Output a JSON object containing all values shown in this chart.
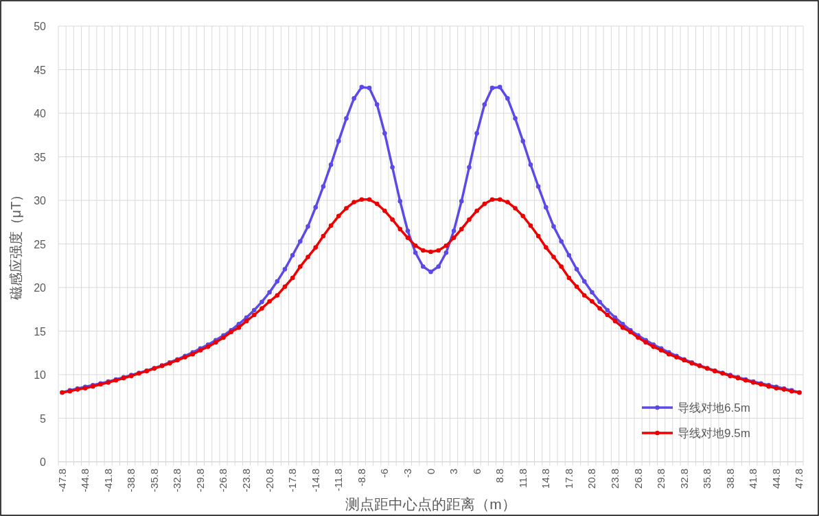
{
  "chart_data": {
    "type": "line",
    "xlabel": "测点距中心点的距离（m）",
    "ylabel": "磁感应强度（μT）",
    "categories": [
      "-47.8",
      null,
      null,
      "-44.8",
      null,
      null,
      "-41.8",
      null,
      null,
      "-38.8",
      null,
      null,
      "-35.8",
      null,
      null,
      "-32.8",
      null,
      null,
      "-29.8",
      null,
      null,
      "-26.8",
      null,
      null,
      "-23.8",
      null,
      null,
      "-20.8",
      null,
      null,
      "-17.8",
      null,
      null,
      "-14.8",
      null,
      null,
      "-11.8",
      null,
      null,
      "-8.8",
      null,
      null,
      "-6",
      null,
      null,
      "-3",
      null,
      null,
      "0",
      null,
      null,
      "3",
      null,
      null,
      "6",
      null,
      null,
      "8.8",
      null,
      null,
      "11.8",
      null,
      null,
      "14.8",
      null,
      null,
      "17.8",
      null,
      null,
      "20.8",
      null,
      null,
      "23.8",
      null,
      null,
      "26.8",
      null,
      null,
      "29.8",
      null,
      null,
      "32.8",
      null,
      null,
      "35.8",
      null,
      null,
      "38.8",
      null,
      null,
      "41.8",
      null,
      null,
      "44.8",
      null,
      null,
      "47.8"
    ],
    "series": [
      {
        "name": "导线对地6.5m",
        "color": "#5b4ae6",
        "values": [
          7.95,
          8.2,
          8.4,
          8.6,
          8.8,
          9.0,
          9.2,
          9.45,
          9.7,
          9.95,
          10.2,
          10.45,
          10.75,
          11.05,
          11.4,
          11.75,
          12.15,
          12.55,
          13.0,
          13.45,
          13.95,
          14.5,
          15.1,
          15.8,
          16.55,
          17.4,
          18.35,
          19.45,
          20.7,
          22.1,
          23.7,
          25.3,
          27.0,
          29.2,
          31.6,
          34.1,
          36.8,
          39.4,
          41.7,
          43.0,
          42.9,
          41.0,
          37.7,
          33.8,
          29.9,
          26.5,
          24.0,
          22.4,
          21.8,
          22.4,
          24.0,
          26.5,
          29.9,
          33.8,
          37.7,
          41.0,
          42.9,
          43.0,
          41.7,
          39.4,
          36.8,
          34.1,
          31.6,
          29.2,
          27.0,
          25.3,
          23.7,
          22.1,
          20.7,
          19.45,
          18.35,
          17.4,
          16.55,
          15.8,
          15.1,
          14.5,
          13.95,
          13.45,
          13.0,
          12.55,
          12.15,
          11.75,
          11.4,
          11.05,
          10.75,
          10.45,
          10.2,
          9.95,
          9.7,
          9.45,
          9.2,
          9.0,
          8.8,
          8.6,
          8.4,
          8.2,
          7.95
        ]
      },
      {
        "name": "导线对地9.5m",
        "color": "#ee0000",
        "values": [
          7.95,
          8.1,
          8.3,
          8.45,
          8.65,
          8.9,
          9.1,
          9.35,
          9.6,
          9.85,
          10.15,
          10.4,
          10.7,
          11.0,
          11.3,
          11.65,
          12.0,
          12.35,
          12.8,
          13.2,
          13.7,
          14.25,
          14.9,
          15.4,
          16.15,
          16.85,
          17.6,
          18.4,
          19.1,
          20.1,
          21.1,
          22.4,
          23.5,
          24.6,
          25.9,
          27.1,
          28.2,
          29.1,
          29.8,
          30.1,
          30.1,
          29.6,
          28.8,
          27.8,
          26.7,
          25.7,
          24.8,
          24.25,
          24.1,
          24.25,
          24.8,
          25.7,
          26.7,
          27.8,
          28.8,
          29.6,
          30.1,
          30.1,
          29.8,
          29.1,
          28.2,
          27.1,
          25.9,
          24.6,
          23.5,
          22.4,
          21.1,
          20.1,
          19.1,
          18.4,
          17.6,
          16.85,
          16.15,
          15.4,
          14.9,
          14.25,
          13.7,
          13.2,
          12.8,
          12.35,
          12.0,
          11.65,
          11.3,
          11.0,
          10.7,
          10.4,
          10.15,
          9.85,
          9.6,
          9.35,
          9.1,
          8.9,
          8.65,
          8.45,
          8.3,
          8.1,
          7.95
        ]
      }
    ],
    "ylim": [
      0,
      50
    ],
    "yticks": [
      0,
      5,
      10,
      15,
      20,
      25,
      30,
      35,
      40,
      45,
      50
    ],
    "grid": true,
    "legend": "bottom right",
    "marker": "circle",
    "line_style": "solid"
  }
}
